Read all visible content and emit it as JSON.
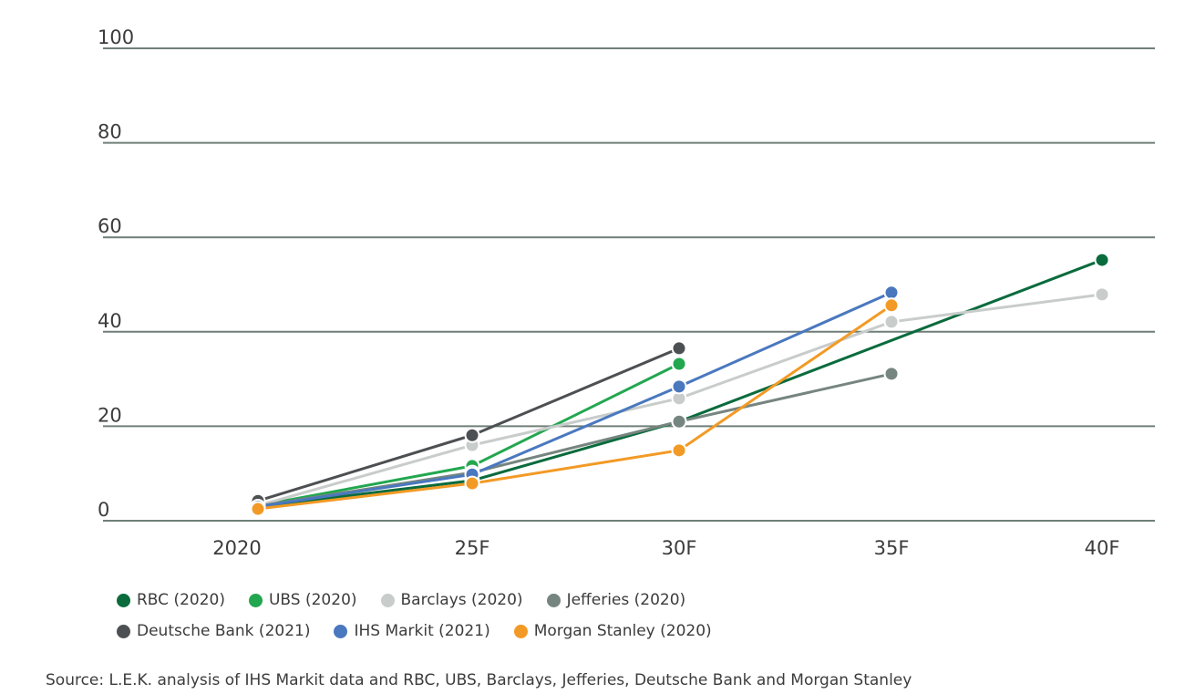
{
  "chart_data": {
    "type": "line",
    "categories": [
      "2020",
      "25F",
      "30F",
      "35F",
      "40F"
    ],
    "ylim": [
      0,
      100
    ],
    "yticks": [
      "0",
      "20",
      "40",
      "60",
      "80",
      "100"
    ],
    "grid": true,
    "legend_placement": "bottom",
    "series": [
      {
        "name": "RBC (2020)",
        "color": "#0a6b3d",
        "values": [
          3,
          8.5,
          21,
          null,
          55.2
        ]
      },
      {
        "name": "UBS (2020)",
        "color": "#22a74f",
        "values": [
          3.2,
          11.6,
          33.2,
          null,
          null
        ]
      },
      {
        "name": "Barclays (2020)",
        "color": "#c8cccb",
        "values": [
          3.2,
          16,
          25.9,
          42.1,
          47.9
        ]
      },
      {
        "name": "Jefferies (2020)",
        "color": "#76857f",
        "values": [
          3.1,
          10.2,
          21,
          31.1,
          null
        ]
      },
      {
        "name": "Deutsche Bank (2021)",
        "color": "#4d5052",
        "values": [
          4.2,
          18.1,
          36.5,
          null,
          null
        ]
      },
      {
        "name": "IHS Markit (2021)",
        "color": "#4a78bf",
        "values": [
          3,
          9.8,
          28.4,
          48.3,
          null
        ]
      },
      {
        "name": "Morgan Stanley (2020)",
        "color": "#f29a25",
        "values": [
          2.5,
          7.9,
          14.9,
          45.6,
          null
        ]
      }
    ],
    "source": "Source: L.E.K. analysis of IHS Markit data and RBC, UBS, Barclays, Jefferies, Deutsche Bank and Morgan Stanley"
  }
}
